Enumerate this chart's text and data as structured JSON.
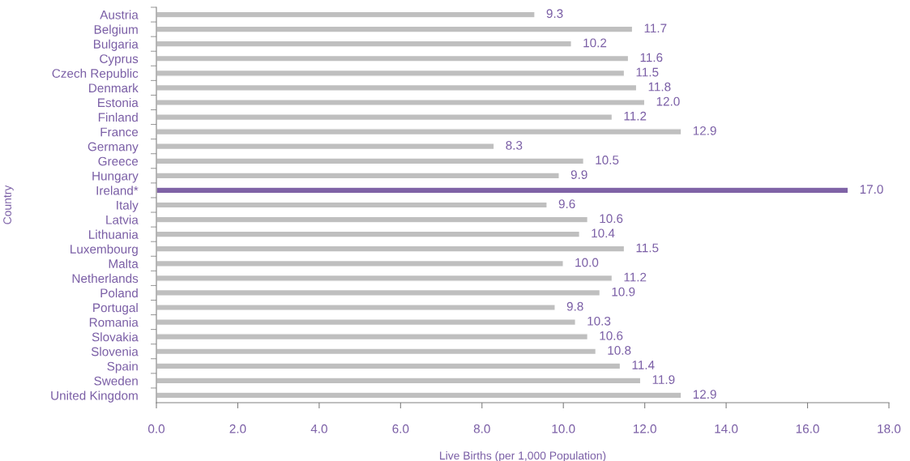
{
  "chart_data": {
    "type": "bar",
    "orientation": "horizontal",
    "xlabel": "Live Births (per 1,000 Population)",
    "ylabel": "Country",
    "categories": [
      "Austria",
      "Belgium",
      "Bulgaria",
      "Cyprus",
      "Czech Republic",
      "Denmark",
      "Estonia",
      "Finland",
      "France",
      "Germany",
      "Greece",
      "Hungary",
      "Ireland*",
      "Italy",
      "Latvia",
      "Lithuania",
      "Luxembourg",
      "Malta",
      "Netherlands",
      "Poland",
      "Portugal",
      "Romania",
      "Slovakia",
      "Slovenia",
      "Spain",
      "Sweden",
      "United Kingdom"
    ],
    "values": [
      9.3,
      11.7,
      10.2,
      11.6,
      11.5,
      11.8,
      12.0,
      11.2,
      12.9,
      8.3,
      10.5,
      9.9,
      17.0,
      9.6,
      10.6,
      10.4,
      11.5,
      10.0,
      11.2,
      10.9,
      9.8,
      10.3,
      10.6,
      10.8,
      11.4,
      11.9,
      12.9
    ],
    "value_labels": [
      "9.3",
      "11.7",
      "10.2",
      "11.6",
      "11.5",
      "11.8",
      "12.0",
      "11.2",
      "12.9",
      "8.3",
      "10.5",
      "9.9",
      "17.0",
      "9.6",
      "10.6",
      "10.4",
      "11.5",
      "10.0",
      "11.2",
      "10.9",
      "9.8",
      "10.3",
      "10.6",
      "10.8",
      "11.4",
      "11.9",
      "12.9"
    ],
    "colors": [
      "#bfbfbf",
      "#bfbfbf",
      "#bfbfbf",
      "#bfbfbf",
      "#bfbfbf",
      "#bfbfbf",
      "#bfbfbf",
      "#bfbfbf",
      "#bfbfbf",
      "#bfbfbf",
      "#bfbfbf",
      "#bfbfbf",
      "#7f63a6",
      "#bfbfbf",
      "#bfbfbf",
      "#bfbfbf",
      "#bfbfbf",
      "#bfbfbf",
      "#bfbfbf",
      "#bfbfbf",
      "#bfbfbf",
      "#bfbfbf",
      "#bfbfbf",
      "#bfbfbf",
      "#bfbfbf",
      "#bfbfbf",
      "#bfbfbf"
    ],
    "xlim": [
      0,
      18
    ],
    "xticks": [
      {
        "value": 0,
        "label": "0.0"
      },
      {
        "value": 2,
        "label": "2.0"
      },
      {
        "value": 4,
        "label": "4.0"
      },
      {
        "value": 6,
        "label": "6.0"
      },
      {
        "value": 8,
        "label": "8.0"
      },
      {
        "value": 10,
        "label": "10.0"
      },
      {
        "value": 12,
        "label": "12.0"
      },
      {
        "value": 14,
        "label": "14.0"
      },
      {
        "value": 16,
        "label": "16.0"
      },
      {
        "value": 18,
        "label": "18.0"
      }
    ],
    "grid": false,
    "legend": false
  }
}
